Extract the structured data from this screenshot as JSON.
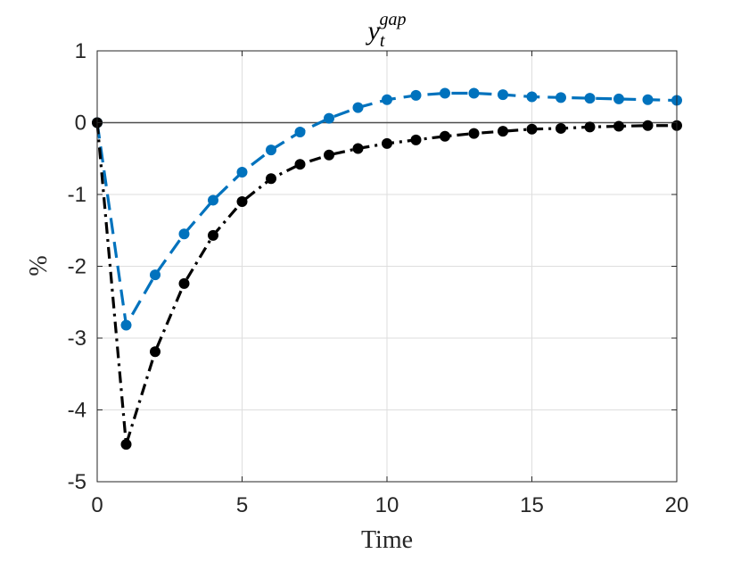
{
  "chart_data": {
    "type": "line",
    "title": {
      "base": "y",
      "superscript": "gap",
      "subscript": "t"
    },
    "xlabel": "Time",
    "ylabel": "%",
    "xlim": [
      0,
      20
    ],
    "ylim": [
      -5,
      1
    ],
    "xticks": [
      0,
      5,
      10,
      15,
      20
    ],
    "yticks": [
      1,
      0,
      -1,
      -2,
      -3,
      -4,
      -5
    ],
    "xtick_labels": [
      "0",
      "5",
      "10",
      "15",
      "20"
    ],
    "ytick_labels": [
      "1",
      "0",
      "-1",
      "-2",
      "-3",
      "-4",
      "-5"
    ],
    "grid": true,
    "zero_line": true,
    "series": [
      {
        "name": "blue-dashed",
        "color": "#0072BD",
        "style": "dashed",
        "x": [
          0,
          1,
          2,
          3,
          4,
          5,
          6,
          7,
          8,
          9,
          10,
          11,
          12,
          13,
          14,
          15,
          16,
          17,
          18,
          19,
          20
        ],
        "y": [
          0,
          -2.82,
          -2.12,
          -1.55,
          -1.08,
          -0.69,
          -0.38,
          -0.13,
          0.06,
          0.21,
          0.32,
          0.38,
          0.41,
          0.41,
          0.39,
          0.36,
          0.35,
          0.34,
          0.33,
          0.32,
          0.31
        ]
      },
      {
        "name": "black-dashdot",
        "color": "#000000",
        "style": "dashdot",
        "x": [
          0,
          1,
          2,
          3,
          4,
          5,
          6,
          7,
          8,
          9,
          10,
          11,
          12,
          13,
          14,
          15,
          16,
          17,
          18,
          19,
          20
        ],
        "y": [
          0,
          -4.48,
          -3.19,
          -2.24,
          -1.57,
          -1.1,
          -0.78,
          -0.58,
          -0.45,
          -0.36,
          -0.29,
          -0.24,
          -0.19,
          -0.15,
          -0.12,
          -0.09,
          -0.08,
          -0.06,
          -0.05,
          -0.04,
          -0.04
        ]
      }
    ]
  }
}
